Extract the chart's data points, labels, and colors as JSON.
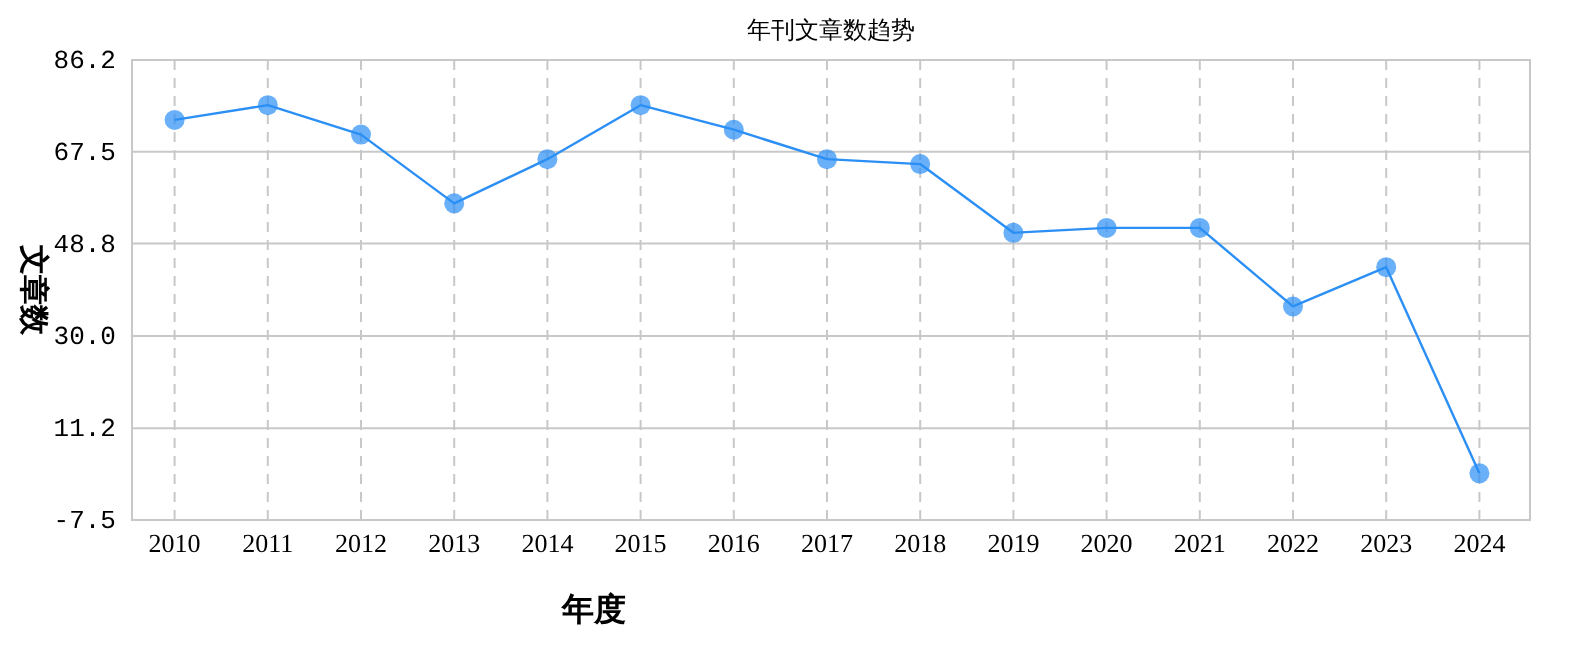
{
  "chart_data": {
    "type": "line",
    "title": "年刊文章数趋势",
    "xlabel": "年度",
    "ylabel": "文章数",
    "categories": [
      "2010",
      "2011",
      "2012",
      "2013",
      "2014",
      "2015",
      "2016",
      "2017",
      "2018",
      "2019",
      "2020",
      "2021",
      "2022",
      "2023",
      "2024"
    ],
    "series": [
      {
        "color": "#2b8ff5",
        "values": [
          74,
          77,
          71,
          57,
          66,
          77,
          72,
          66,
          65,
          51,
          52,
          52,
          36,
          44,
          2
        ]
      }
    ],
    "ylim": [
      -7.5,
      86.2
    ],
    "yticks": [
      {
        "value": -7.5,
        "label": "-7.5"
      },
      {
        "value": 11.2,
        "label": "11.2"
      },
      {
        "value": 30.0,
        "label": "30.0"
      },
      {
        "value": 48.8,
        "label": "48.8"
      },
      {
        "value": 67.5,
        "label": "67.5"
      },
      {
        "value": 86.2,
        "label": "86.2"
      }
    ],
    "grid": true,
    "marker": "circle",
    "line_style": "solid"
  }
}
